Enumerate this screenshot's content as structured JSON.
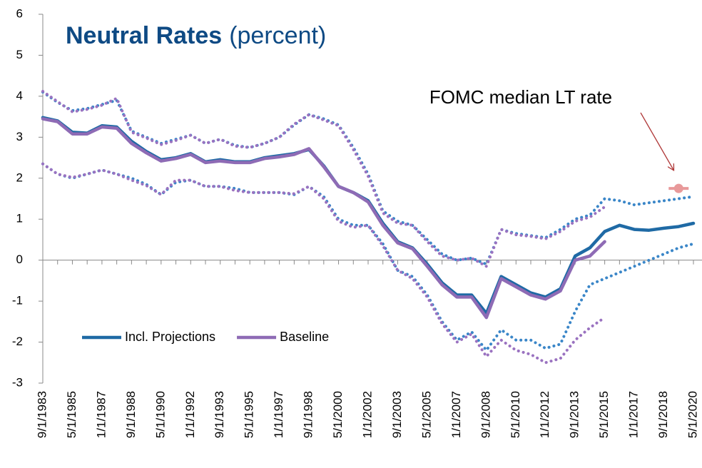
{
  "chart_data": {
    "type": "line",
    "title": "Neutral Rates",
    "subtitle": "(percent)",
    "annotation": "FOMC median LT rate",
    "categories": [
      "9/1/1983",
      null,
      "5/1/1985",
      null,
      "1/1/1987",
      null,
      "9/1/1988",
      null,
      "5/1/1990",
      null,
      "1/1/1992",
      null,
      "9/1/1993",
      null,
      "5/1/1995",
      null,
      "1/1/1997",
      null,
      "9/1/1998",
      null,
      "5/1/2000",
      null,
      "1/1/2002",
      null,
      "9/1/2003",
      null,
      "5/1/2005",
      null,
      "1/1/2007",
      null,
      "9/1/2008",
      null,
      "5/1/2010",
      null,
      "1/1/2012",
      null,
      "9/1/2013",
      null,
      "5/1/2015",
      null,
      "1/1/2017",
      null,
      "9/1/2018",
      null,
      "5/1/2020"
    ],
    "ylim": [
      -3,
      6
    ],
    "yticks": [
      -3,
      -2,
      -1,
      0,
      1,
      2,
      3,
      4,
      5,
      6
    ],
    "legend": "lower left",
    "series": [
      {
        "color": "#3a86c8",
        "style": "dotted",
        "values": [
          4.1,
          3.85,
          3.65,
          3.7,
          3.8,
          3.9,
          3.15,
          3.0,
          2.85,
          2.95,
          3.05,
          2.85,
          2.95,
          2.8,
          2.75,
          2.85,
          3.0,
          3.3,
          3.55,
          3.45,
          3.3,
          2.75,
          2.1,
          1.2,
          0.95,
          0.85,
          0.5,
          0.15,
          0.0,
          0.05,
          -0.1,
          0.75,
          0.65,
          0.6,
          0.55,
          0.75,
          1.0,
          1.1,
          1.5,
          1.45,
          1.35,
          1.4,
          1.45,
          1.5,
          1.55
        ]
      },
      {
        "color": "#3a86c8",
        "style": "dotted",
        "values": [
          2.35,
          2.1,
          2.0,
          2.1,
          2.2,
          2.1,
          2.0,
          1.85,
          1.6,
          1.9,
          1.95,
          1.8,
          1.8,
          1.75,
          1.65,
          1.65,
          1.65,
          1.6,
          1.8,
          1.55,
          1.0,
          0.85,
          0.85,
          0.4,
          -0.25,
          -0.4,
          -0.85,
          -1.5,
          -1.95,
          -1.75,
          -2.2,
          -1.7,
          -1.95,
          -1.95,
          -2.15,
          -2.05,
          -1.25,
          -0.6,
          -0.45,
          -0.3,
          -0.15,
          0.0,
          0.15,
          0.3,
          0.4
        ]
      },
      {
        "color": "#9a72c0",
        "style": "dotted",
        "values": [
          4.12,
          3.87,
          3.62,
          3.68,
          3.78,
          3.95,
          3.12,
          2.98,
          2.82,
          2.92,
          3.05,
          2.85,
          2.95,
          2.78,
          2.75,
          2.85,
          3.0,
          3.32,
          3.55,
          3.42,
          3.28,
          2.7,
          2.05,
          1.15,
          0.9,
          0.85,
          0.45,
          0.1,
          0.0,
          0.05,
          -0.15,
          0.75,
          0.62,
          0.58,
          0.52,
          0.7,
          0.95,
          1.05,
          1.3,
          null,
          null,
          null,
          null,
          null,
          null
        ]
      },
      {
        "color": "#9a72c0",
        "style": "dotted",
        "values": [
          2.35,
          2.1,
          2.02,
          2.1,
          2.2,
          2.1,
          1.95,
          1.82,
          1.6,
          1.95,
          1.95,
          1.8,
          1.8,
          1.7,
          1.65,
          1.65,
          1.65,
          1.62,
          1.8,
          1.5,
          0.95,
          0.8,
          0.85,
          0.35,
          -0.25,
          -0.45,
          -0.9,
          -1.55,
          -2.0,
          -1.8,
          -2.35,
          -1.95,
          -2.2,
          -2.3,
          -2.5,
          -2.4,
          -1.95,
          -1.65,
          -1.4,
          null,
          null,
          null,
          null,
          null,
          null
        ]
      },
      {
        "name": "Incl. Projections",
        "color": "#1f6aa5",
        "style": "solid",
        "values": [
          3.48,
          3.4,
          3.12,
          3.1,
          3.28,
          3.25,
          2.9,
          2.65,
          2.45,
          2.5,
          2.6,
          2.4,
          2.45,
          2.4,
          2.4,
          2.5,
          2.55,
          2.6,
          2.7,
          2.3,
          1.8,
          1.65,
          1.45,
          0.9,
          0.45,
          0.3,
          -0.1,
          -0.55,
          -0.85,
          -0.85,
          -1.3,
          -0.4,
          -0.6,
          -0.8,
          -0.9,
          -0.7,
          0.1,
          0.3,
          0.7,
          0.85,
          0.75,
          0.73,
          0.78,
          0.82,
          0.9
        ]
      },
      {
        "name": "Baseline",
        "color": "#8e6bb5",
        "style": "solid",
        "values": [
          3.45,
          3.38,
          3.08,
          3.08,
          3.25,
          3.22,
          2.85,
          2.62,
          2.42,
          2.48,
          2.58,
          2.38,
          2.42,
          2.38,
          2.38,
          2.48,
          2.52,
          2.58,
          2.72,
          2.28,
          1.8,
          1.65,
          1.42,
          0.85,
          0.42,
          0.28,
          -0.15,
          -0.6,
          -0.9,
          -0.9,
          -1.4,
          -0.45,
          -0.65,
          -0.85,
          -0.95,
          -0.75,
          0.0,
          0.1,
          0.45,
          null,
          null,
          null,
          null,
          null,
          null
        ]
      },
      {
        "color": "#e8999a",
        "style": "marker",
        "values": [
          null,
          null,
          null,
          null,
          null,
          null,
          null,
          null,
          null,
          null,
          null,
          null,
          null,
          null,
          null,
          null,
          null,
          null,
          null,
          null,
          null,
          null,
          null,
          null,
          null,
          null,
          null,
          null,
          null,
          null,
          null,
          null,
          null,
          null,
          null,
          null,
          null,
          null,
          null,
          null,
          null,
          null,
          null,
          1.75,
          null
        ]
      }
    ]
  }
}
